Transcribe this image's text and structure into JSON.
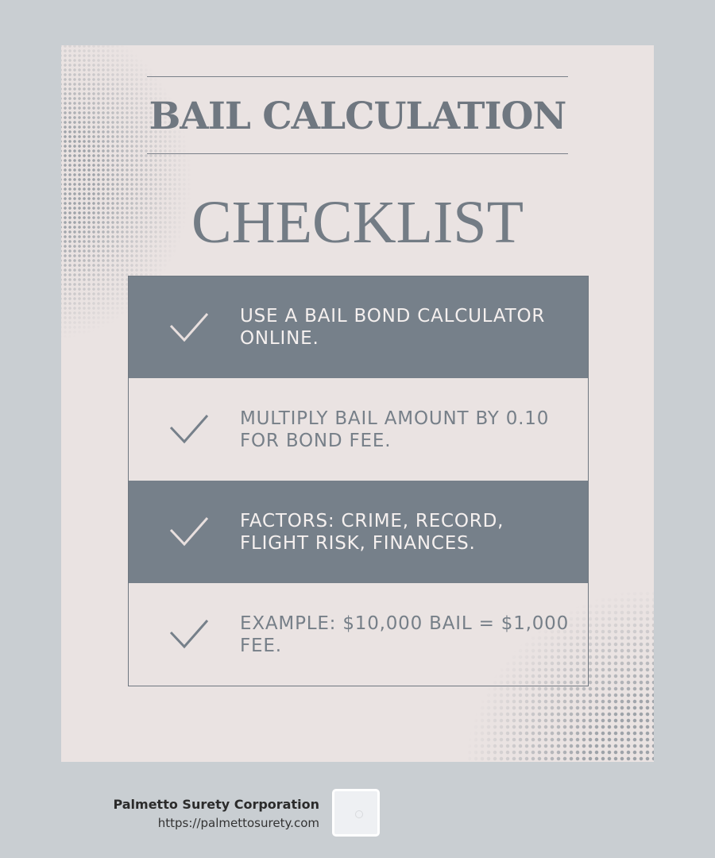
{
  "header": {
    "title_line1": "BAIL CALCULATION",
    "title_line2": "CHECKLIST"
  },
  "checklist": {
    "items": [
      {
        "text": "USE A BAIL BOND CALCULATOR ONLINE.",
        "style": "dark",
        "icon": "check-icon"
      },
      {
        "text": "MULTIPLY BAIL AMOUNT BY 0.10 FOR BOND FEE.",
        "style": "light",
        "icon": "check-icon"
      },
      {
        "text": "FACTORS: CRIME, RECORD, FLIGHT RISK, FINANCES.",
        "style": "dark",
        "icon": "check-icon"
      },
      {
        "text": "EXAMPLE: $10,000 BAIL = $1,000 FEE.",
        "style": "light",
        "icon": "check-icon"
      }
    ]
  },
  "footer": {
    "company": "Palmetto Surety Corporation",
    "url": "https://palmettosurety.com"
  },
  "colors": {
    "background": "#c9ced2",
    "card": "#eae3e2",
    "dark_row": "#76808a",
    "text_gray": "#767f88"
  }
}
